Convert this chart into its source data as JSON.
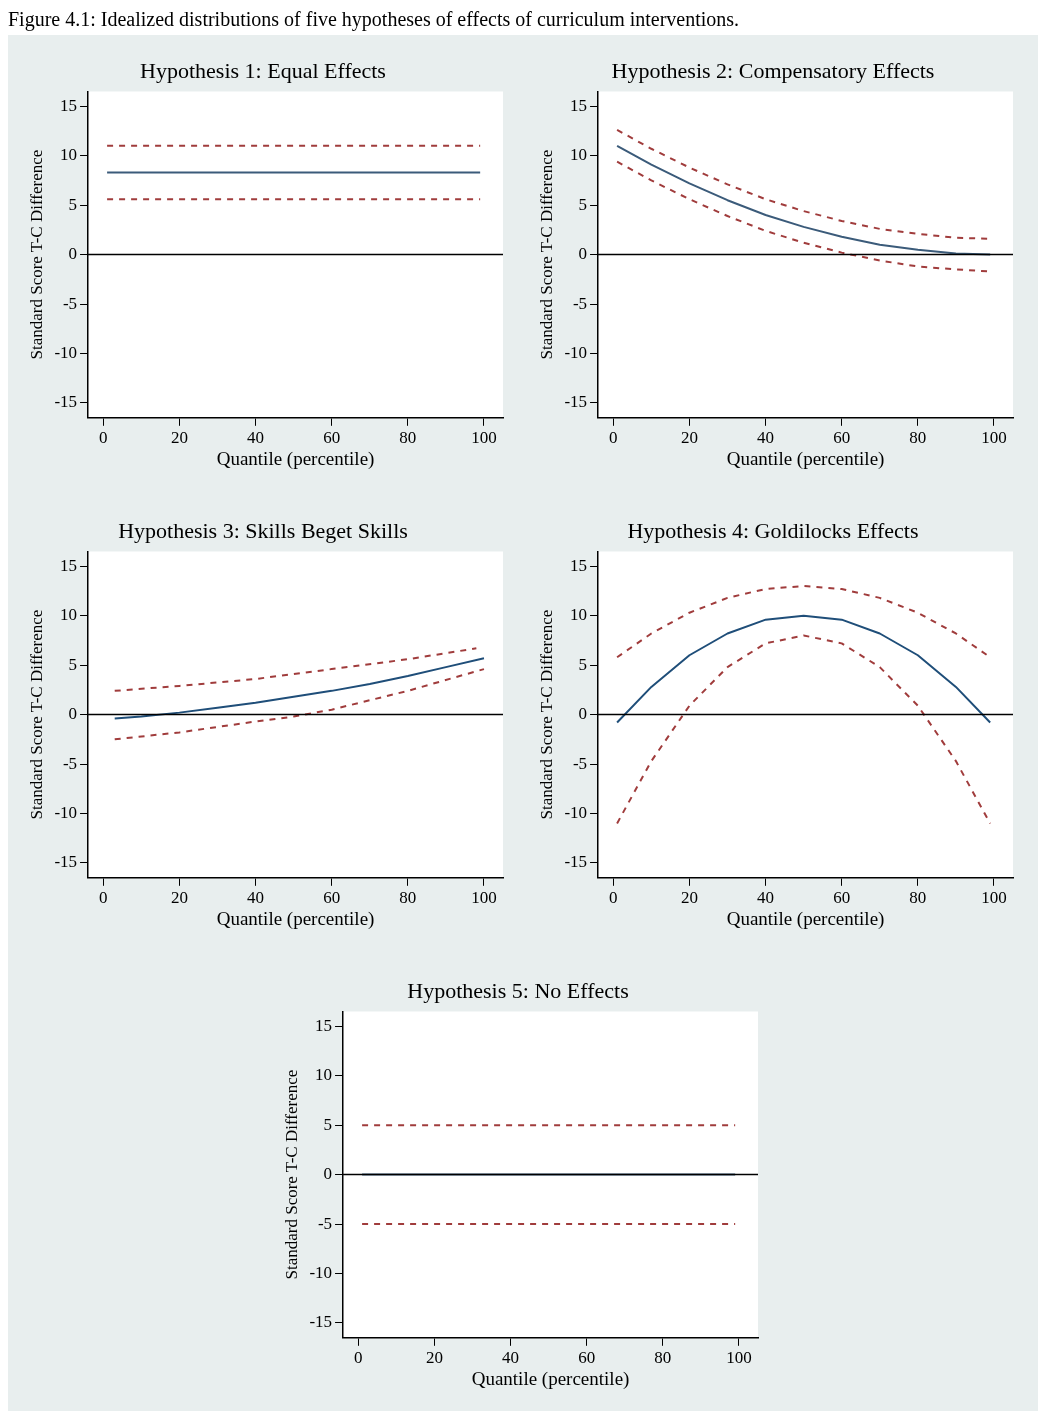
{
  "chart_data": [
    {
      "type": "line",
      "title": "Hypothesis 1: Equal Effects",
      "xlabel": "Quantile (percentile)",
      "ylabel": "Standard Score T-C Difference",
      "annotations": [
        "Figure 4.1: Idealized distributions of five hypotheses of effects of curriculum interventions."
      ],
      "xlim": [
        -4,
        105
      ],
      "ylim": [
        -16.5,
        16.5
      ],
      "xticks": [
        0,
        20,
        40,
        60,
        80,
        100
      ],
      "yticks": [
        -15,
        -10,
        -5,
        0,
        5,
        10,
        15
      ],
      "grid": false,
      "legend": false,
      "marker": "none",
      "ref_lines": [
        {
          "axis": "y",
          "value": 0,
          "color": "#000000"
        }
      ],
      "series": [
        {
          "color": "#3b5b7a",
          "line_style": "solid",
          "x": [
            1,
            99
          ],
          "values": [
            8.3,
            8.3
          ]
        },
        {
          "color": "#a03c3c",
          "line_style": "dashed",
          "x": [
            1,
            99
          ],
          "values": [
            11,
            11
          ]
        },
        {
          "color": "#a03c3c",
          "line_style": "dashed",
          "x": [
            1,
            99
          ],
          "values": [
            5.6,
            5.6
          ]
        }
      ]
    },
    {
      "type": "line",
      "title": "Hypothesis 2: Compensatory Effects",
      "xlabel": "Quantile (percentile)",
      "ylabel": "Standard Score T-C Difference",
      "xlim": [
        -4,
        105
      ],
      "ylim": [
        -16.5,
        16.5
      ],
      "xticks": [
        0,
        20,
        40,
        60,
        80,
        100
      ],
      "yticks": [
        -15,
        -10,
        -5,
        0,
        5,
        10,
        15
      ],
      "grid": false,
      "legend": false,
      "marker": "none",
      "ref_lines": [
        {
          "axis": "y",
          "value": 0,
          "color": "#000000"
        }
      ],
      "series": [
        {
          "color": "#3b5b7a",
          "line_style": "solid",
          "x": [
            1,
            10,
            20,
            30,
            40,
            50,
            60,
            70,
            80,
            90,
            99
          ],
          "values": [
            11,
            9.1,
            7.2,
            5.5,
            4.0,
            2.8,
            1.8,
            1.0,
            0.5,
            0.1,
            0
          ]
        },
        {
          "color": "#a03c3c",
          "line_style": "dashed",
          "x": [
            1,
            10,
            20,
            30,
            40,
            50,
            60,
            70,
            80,
            90,
            99
          ],
          "values": [
            12.6,
            10.7,
            8.8,
            7.1,
            5.6,
            4.4,
            3.4,
            2.6,
            2.1,
            1.7,
            1.6
          ]
        },
        {
          "color": "#a03c3c",
          "line_style": "dashed",
          "x": [
            1,
            10,
            20,
            30,
            40,
            50,
            60,
            70,
            80,
            90,
            99
          ],
          "values": [
            9.4,
            7.5,
            5.6,
            3.9,
            2.4,
            1.2,
            0.2,
            -0.6,
            -1.2,
            -1.5,
            -1.7
          ]
        }
      ]
    },
    {
      "type": "line",
      "title": "Hypothesis 3: Skills Beget Skills",
      "xlabel": "Quantile (percentile)",
      "ylabel": "Standard Score T-C Difference",
      "xlim": [
        -4,
        105
      ],
      "ylim": [
        -16.5,
        16.5
      ],
      "xticks": [
        0,
        20,
        40,
        60,
        80,
        100
      ],
      "yticks": [
        -15,
        -10,
        -5,
        0,
        5,
        10,
        15
      ],
      "grid": false,
      "legend": false,
      "marker": "none",
      "ref_lines": [
        {
          "axis": "y",
          "value": 0,
          "color": "#000000"
        }
      ],
      "series": [
        {
          "color": "#1f4e79",
          "line_style": "solid",
          "x": [
            3,
            10,
            20,
            30,
            40,
            50,
            60,
            70,
            80,
            90,
            100
          ],
          "values": [
            -0.4,
            -0.2,
            0.2,
            0.7,
            1.2,
            1.8,
            2.4,
            3.1,
            3.9,
            4.8,
            5.7
          ]
        },
        {
          "color": "#a03c3c",
          "line_style": "dashed",
          "x": [
            3,
            20,
            40,
            50,
            60,
            80,
            98
          ],
          "values": [
            2.4,
            2.9,
            3.6,
            4.1,
            4.6,
            5.6,
            6.7
          ]
        },
        {
          "color": "#a03c3c",
          "line_style": "dashed",
          "x": [
            3,
            20,
            40,
            50,
            60,
            80,
            100
          ],
          "values": [
            -2.5,
            -1.8,
            -0.7,
            -0.2,
            0.5,
            2.4,
            4.6
          ]
        }
      ]
    },
    {
      "type": "line",
      "title": "Hypothesis 4: Goldilocks Effects",
      "xlabel": "Quantile (percentile)",
      "ylabel": "Standard Score T-C Difference",
      "xlim": [
        -4,
        105
      ],
      "ylim": [
        -16.5,
        16.5
      ],
      "xticks": [
        0,
        20,
        40,
        60,
        80,
        100
      ],
      "yticks": [
        -15,
        -10,
        -5,
        0,
        5,
        10,
        15
      ],
      "grid": false,
      "legend": false,
      "marker": "none",
      "ref_lines": [
        {
          "axis": "y",
          "value": 0,
          "color": "#000000"
        }
      ],
      "series": [
        {
          "color": "#1f4e79",
          "line_style": "solid",
          "x": [
            1,
            10,
            20,
            30,
            40,
            50,
            60,
            70,
            80,
            90,
            99
          ],
          "values": [
            -0.8,
            2.8,
            6.0,
            8.2,
            9.6,
            10,
            9.6,
            8.2,
            6.0,
            2.8,
            -0.8
          ]
        },
        {
          "color": "#a03c3c",
          "line_style": "dashed",
          "x": [
            1,
            10,
            20,
            30,
            40,
            50,
            60,
            70,
            80,
            90,
            99
          ],
          "values": [
            5.8,
            8.2,
            10.3,
            11.8,
            12.7,
            13,
            12.7,
            11.8,
            10.3,
            8.2,
            5.8
          ]
        },
        {
          "color": "#a03c3c",
          "line_style": "dashed",
          "x": [
            1,
            10,
            20,
            30,
            40,
            50,
            60,
            70,
            80,
            90,
            99
          ],
          "values": [
            -11,
            -4.7,
            0.9,
            4.8,
            7.2,
            8,
            7.2,
            4.8,
            0.9,
            -4.7,
            -11
          ]
        }
      ]
    },
    {
      "type": "line",
      "title": "Hypothesis 5: No Effects",
      "xlabel": "Quantile (percentile)",
      "ylabel": "Standard Score T-C Difference",
      "xlim": [
        -4,
        105
      ],
      "ylim": [
        -16.5,
        16.5
      ],
      "xticks": [
        0,
        20,
        40,
        60,
        80,
        100
      ],
      "yticks": [
        -15,
        -10,
        -5,
        0,
        5,
        10,
        15
      ],
      "grid": false,
      "legend": false,
      "marker": "none",
      "ref_lines": [
        {
          "axis": "y",
          "value": 0,
          "color": "#000000"
        }
      ],
      "series": [
        {
          "color": "#3b5b7a",
          "line_style": "solid",
          "x": [
            1,
            99
          ],
          "values": [
            0,
            0
          ]
        },
        {
          "color": "#a03c3c",
          "line_style": "dashed",
          "x": [
            1,
            99
          ],
          "values": [
            5,
            5
          ]
        },
        {
          "color": "#a03c3c",
          "line_style": "dashed",
          "x": [
            1,
            99
          ],
          "values": [
            -5,
            -5
          ]
        }
      ]
    }
  ]
}
